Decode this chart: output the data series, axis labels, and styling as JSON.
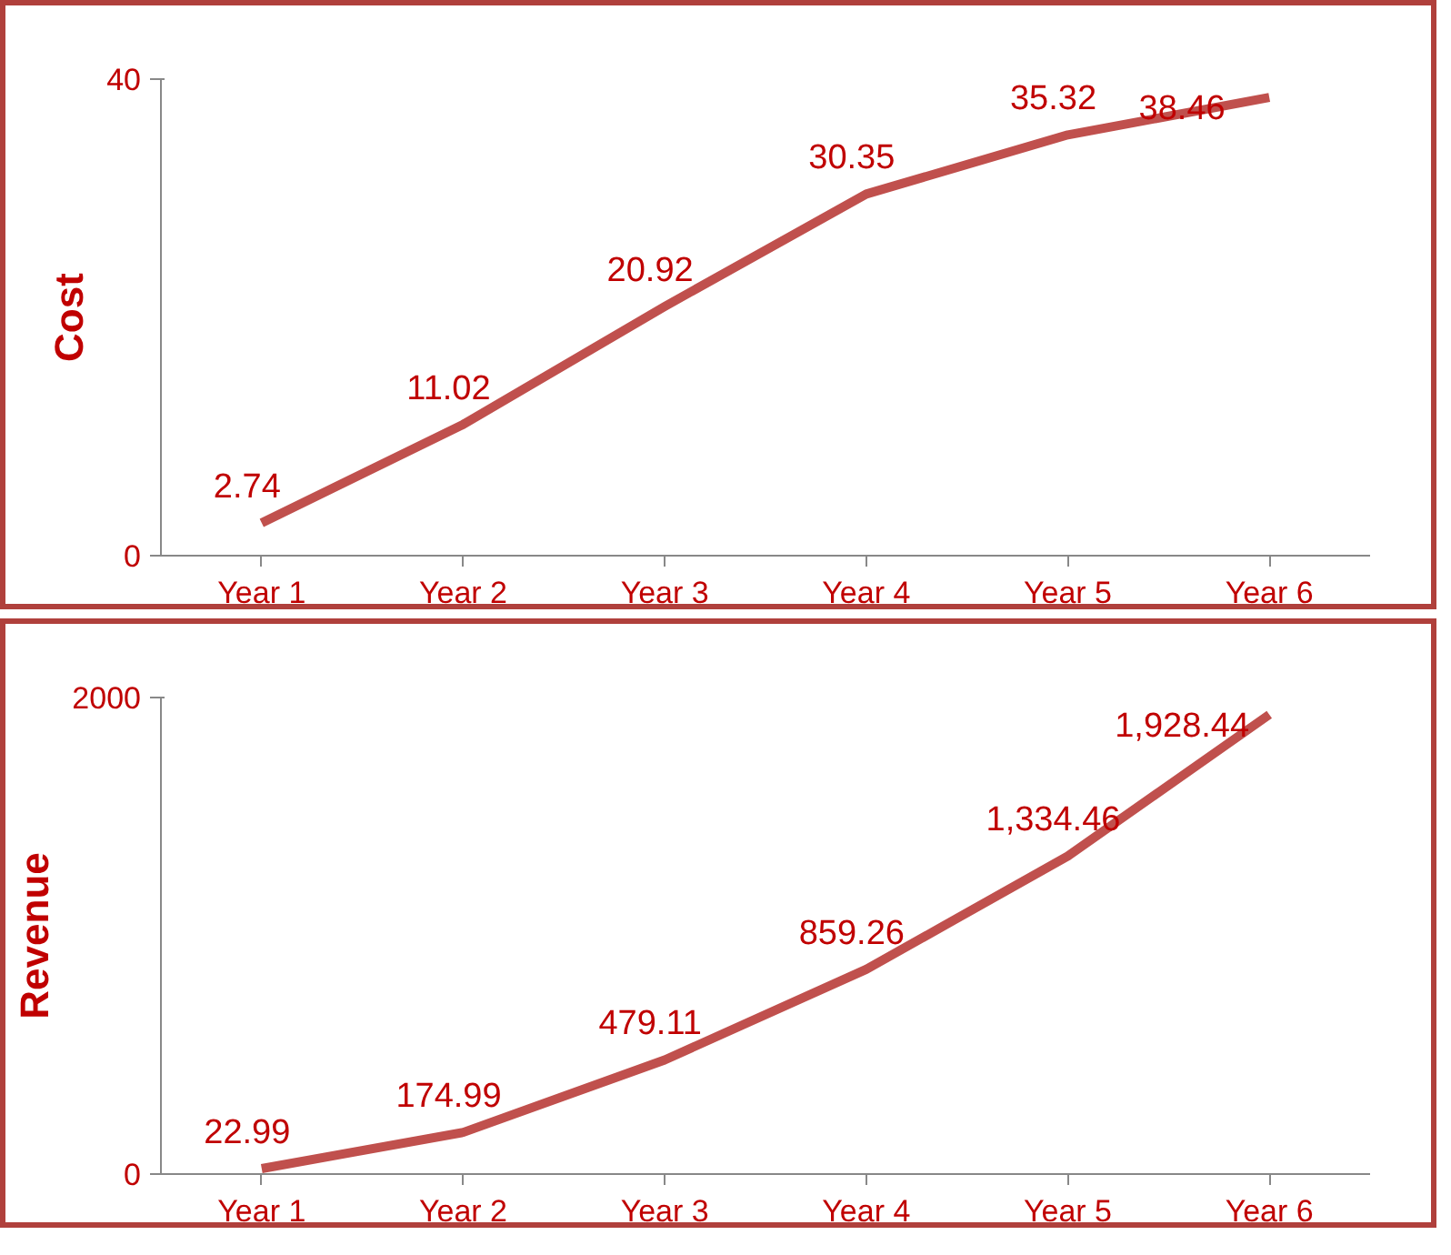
{
  "chart_data": [
    {
      "type": "line",
      "ylabel": "Cost",
      "categories": [
        "Year 1",
        "Year 2",
        "Year 3",
        "Year 4",
        "Year 5",
        "Year 6"
      ],
      "series": [
        {
          "color": "#c0504d",
          "values": [
            2.74,
            11.02,
            20.92,
            30.35,
            35.32,
            38.46
          ]
        }
      ],
      "ylim": [
        0,
        40
      ],
      "yticks": [
        0,
        40
      ],
      "grid": false,
      "marker": "none",
      "line_style": "solid",
      "data_labels": true
    },
    {
      "type": "line",
      "ylabel": "Revenue",
      "categories": [
        "Year 1",
        "Year 2",
        "Year 3",
        "Year 4",
        "Year 5",
        "Year 6"
      ],
      "series": [
        {
          "color": "#c0504d",
          "values": [
            22.99,
            174.99,
            479.11,
            859.26,
            1334.46,
            1928.44
          ],
          "value_labels": [
            "22.99",
            "174.99",
            "479.11",
            "859.26",
            "1,334.46",
            "1,928.44"
          ]
        }
      ],
      "ylim": [
        0,
        2000
      ],
      "yticks": [
        0,
        2000
      ],
      "grid": false,
      "marker": "none",
      "line_style": "solid"
    }
  ]
}
